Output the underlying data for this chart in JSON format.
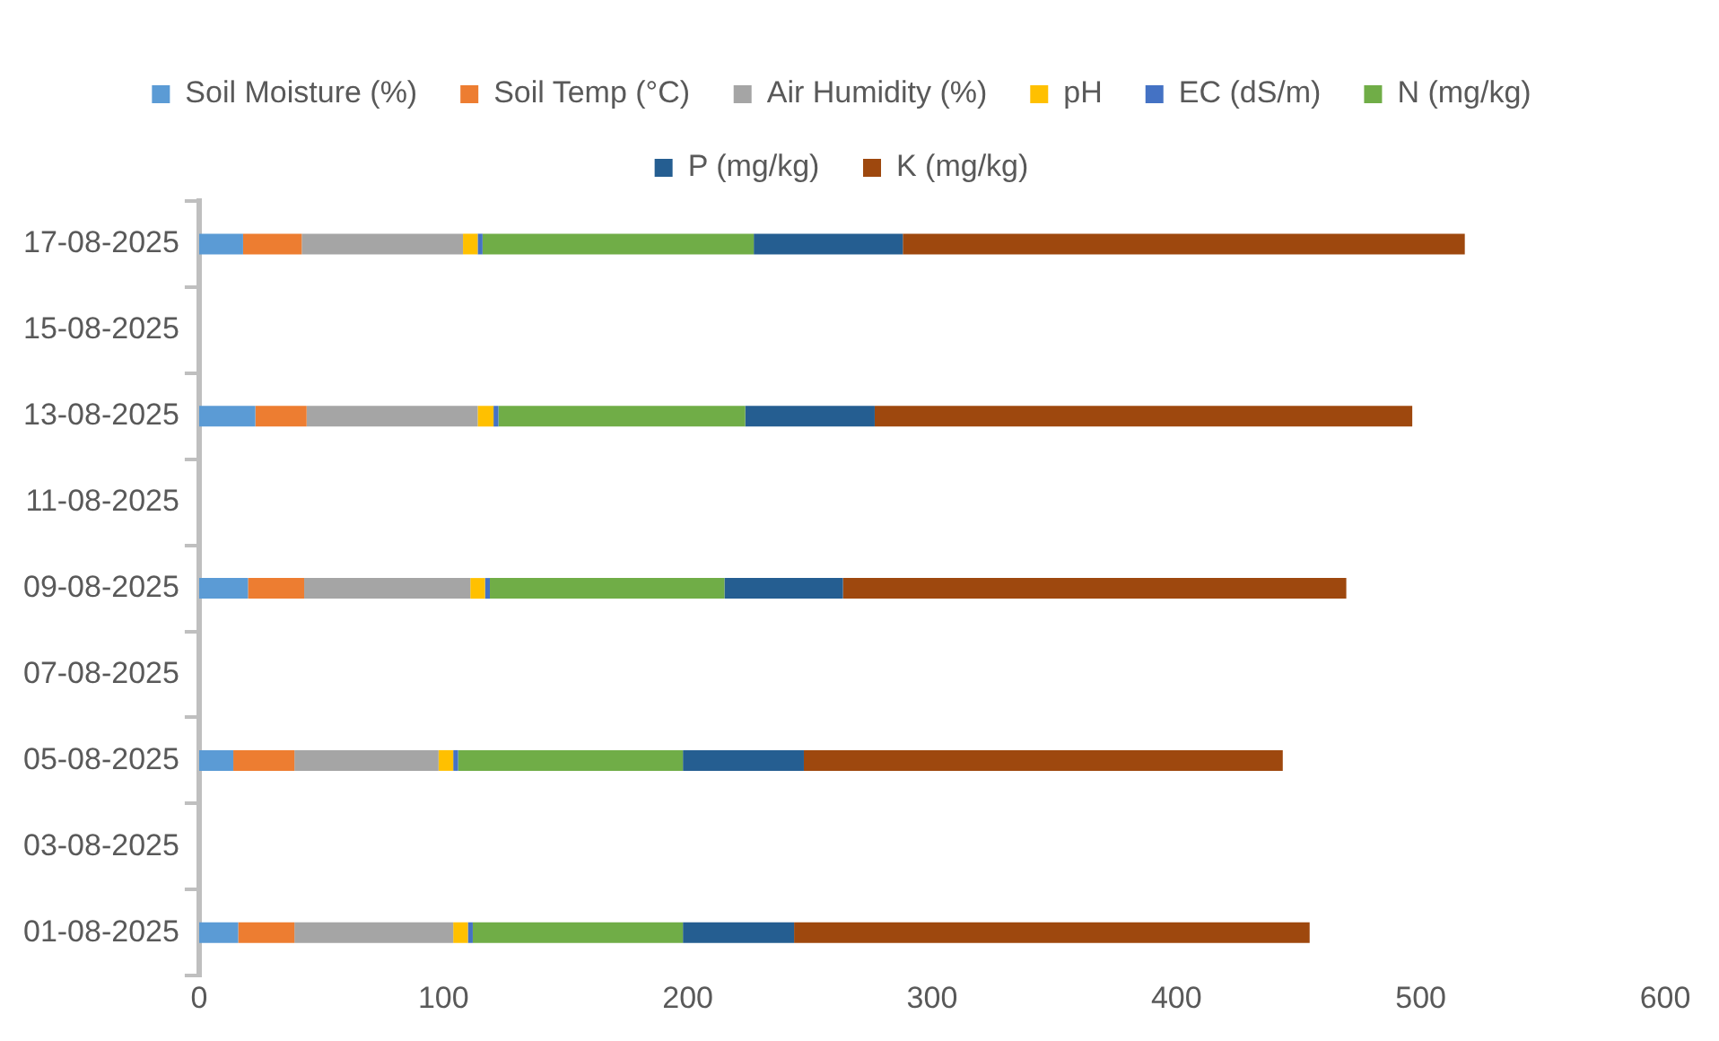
{
  "chart_data": {
    "type": "bar",
    "orientation": "horizontal",
    "stacked": true,
    "legend": "top",
    "grid": false,
    "categories": [
      "17-08-2025",
      "15-08-2025",
      "13-08-2025",
      "11-08-2025",
      "09-08-2025",
      "07-08-2025",
      "05-08-2025",
      "03-08-2025",
      "01-08-2025"
    ],
    "xlim": [
      0,
      600
    ],
    "xticks": [
      0,
      100,
      200,
      300,
      400,
      500,
      600
    ],
    "series": [
      {
        "name": "Soil Moisture (%)",
        "color": "#5b9bd5",
        "values": [
          18,
          null,
          23,
          null,
          20,
          null,
          14,
          null,
          16
        ]
      },
      {
        "name": "Soil Temp (°C)",
        "color": "#ed7d31",
        "values": [
          24,
          null,
          21,
          null,
          23,
          null,
          25,
          null,
          23
        ]
      },
      {
        "name": "Air Humidity (%)",
        "color": "#a5a5a5",
        "values": [
          66,
          null,
          70,
          null,
          68,
          null,
          59,
          null,
          65
        ]
      },
      {
        "name": "pH",
        "color": "#ffc000",
        "values": [
          6,
          null,
          6.5,
          null,
          6,
          null,
          6,
          null,
          6
        ]
      },
      {
        "name": "EC (dS/m)",
        "color": "#4472c4",
        "values": [
          2,
          null,
          2,
          null,
          2,
          null,
          2,
          null,
          2
        ]
      },
      {
        "name": "N (mg/kg)",
        "color": "#70ad47",
        "values": [
          111,
          null,
          101,
          null,
          96,
          null,
          92,
          null,
          86
        ]
      },
      {
        "name": "P (mg/kg)",
        "color": "#255e91",
        "values": [
          61,
          null,
          53,
          null,
          48.5,
          null,
          49.5,
          null,
          45.5
        ]
      },
      {
        "name": "K (mg/kg)",
        "color": "#9e480e",
        "values": [
          230,
          null,
          220,
          null,
          206,
          null,
          196,
          null,
          211
        ]
      }
    ]
  }
}
